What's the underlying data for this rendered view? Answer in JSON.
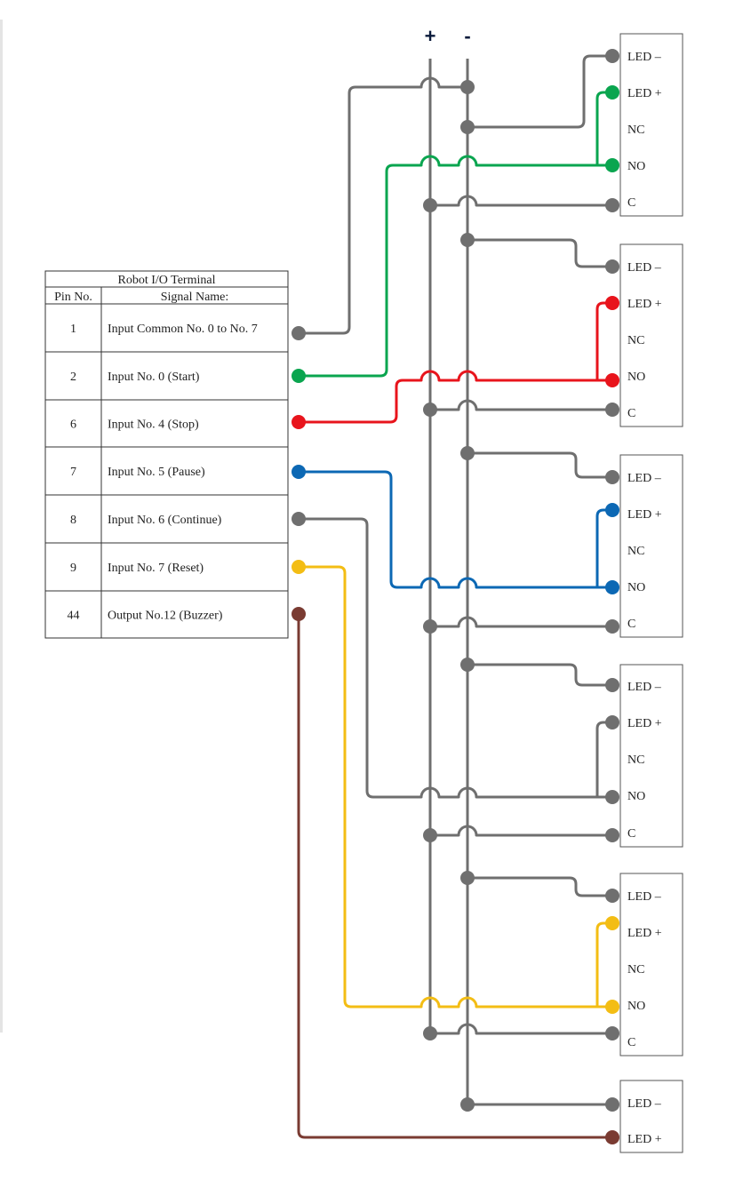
{
  "rails": {
    "plus_label": "+",
    "minus_label": "-"
  },
  "table": {
    "title": "Robot I/O Terminal",
    "col_pin": "Pin No.",
    "col_signal": "Signal Name:",
    "rows": [
      {
        "pin": "1",
        "signal": "Input Common No. 0 to No. 7",
        "wire": "#6f6f6f"
      },
      {
        "pin": "2",
        "signal": "Input No. 0 (Start)",
        "wire": "#0aa54f"
      },
      {
        "pin": "6",
        "signal": "Input No. 4 (Stop)",
        "wire": "#e8141c"
      },
      {
        "pin": "7",
        "signal": "Input No. 5 (Pause)",
        "wire": "#0c68b4"
      },
      {
        "pin": "8",
        "signal": "Input No. 6 (Continue)",
        "wire": "#6f6f6f"
      },
      {
        "pin": "9",
        "signal": "Input No. 7 (Reset)",
        "wire": "#f3bd14"
      },
      {
        "pin": "44",
        "signal": "Output No.12 (Buzzer)",
        "wire": "#7a3b32"
      }
    ]
  },
  "buttons": [
    {
      "pins": [
        "LED –",
        "LED +",
        "NC",
        "NO",
        "C"
      ]
    },
    {
      "pins": [
        "LED –",
        "LED +",
        "NC",
        "NO",
        "C"
      ]
    },
    {
      "pins": [
        "LED –",
        "LED +",
        "NC",
        "NO",
        "C"
      ]
    },
    {
      "pins": [
        "LED –",
        "LED +",
        "NC",
        "NO",
        "C"
      ]
    },
    {
      "pins": [
        "LED –",
        "LED +",
        "NC",
        "NO",
        "C"
      ]
    },
    {
      "pins": [
        "LED –",
        "LED +"
      ]
    }
  ],
  "colors": {
    "gray": "#6f6f6f",
    "green": "#0aa54f",
    "red": "#e8141c",
    "blue": "#0c68b4",
    "yellow": "#f3bd14",
    "brown": "#7a3b32"
  }
}
